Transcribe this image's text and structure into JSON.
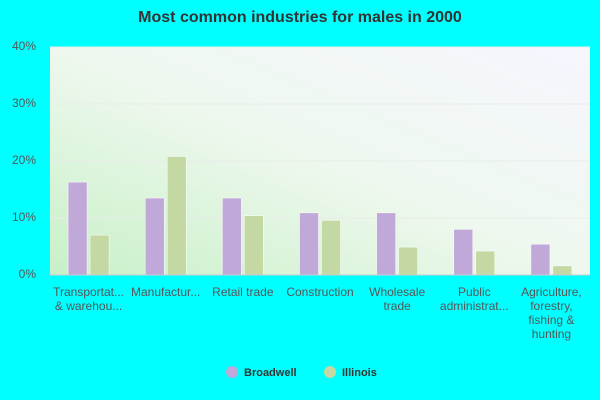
{
  "chart_data": {
    "type": "bar",
    "title": "Most common industries for males in 2000",
    "categories": [
      "Transportat... & warehou...",
      "Manufactur...",
      "Retail trade",
      "Construction",
      "Wholesale trade",
      "Public administrat...",
      "Agriculture, forestry, fishing & hunting"
    ],
    "series": [
      {
        "name": "Broadwell",
        "color": "#c0a8d8",
        "values": [
          16.3,
          13.5,
          13.5,
          10.9,
          10.9,
          8.0,
          5.4
        ]
      },
      {
        "name": "Illinois",
        "color": "#c4d8a4",
        "values": [
          7.0,
          20.8,
          10.4,
          9.6,
          4.9,
          4.2,
          1.6
        ]
      }
    ],
    "ylim": [
      0,
      40
    ],
    "yticks": [
      {
        "value": 0,
        "label": "0%"
      },
      {
        "value": 10,
        "label": "10%"
      },
      {
        "value": 20,
        "label": "20%"
      },
      {
        "value": 30,
        "label": "30%"
      },
      {
        "value": 40,
        "label": "40%"
      }
    ],
    "grid": true
  }
}
